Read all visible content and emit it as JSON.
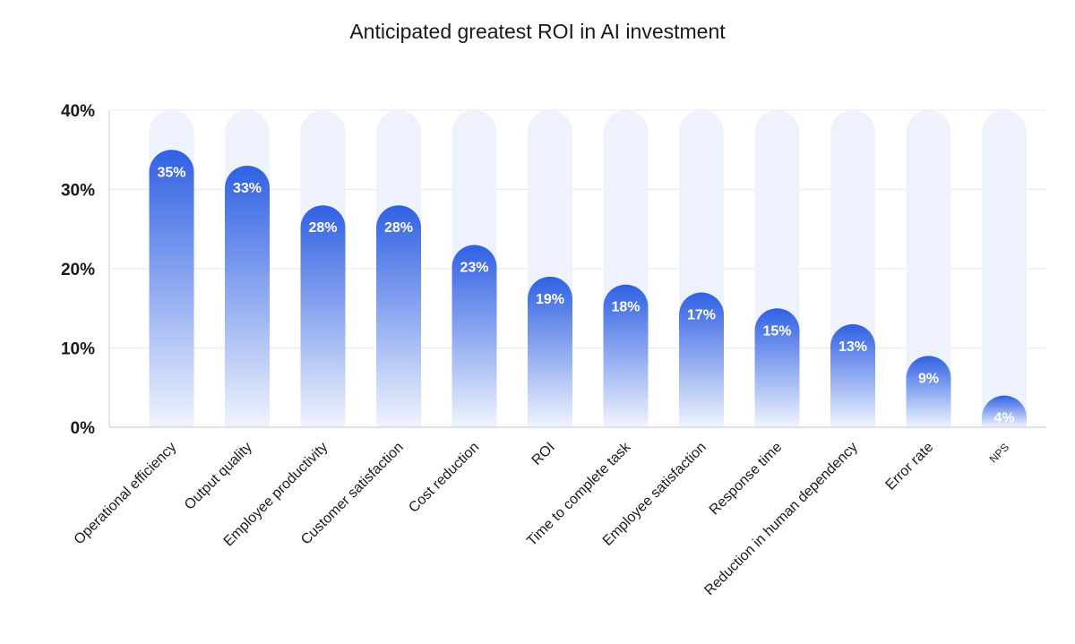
{
  "chart_data": {
    "type": "bar",
    "title": "Anticipated greatest ROI in AI investment",
    "xlabel": "",
    "ylabel": "",
    "categories": [
      "Operational efficiency",
      "Output quality",
      "Employee productivity",
      "Customer satisfaction",
      "Cost reduction",
      "ROI",
      "Time to complete task",
      "Employee satisfaction",
      "Response time",
      "Reduction in human dependency",
      "Error rate",
      "NPS"
    ],
    "values": [
      35,
      33,
      28,
      28,
      23,
      19,
      18,
      17,
      15,
      13,
      9,
      4
    ],
    "data_labels": [
      "35%",
      "33%",
      "28%",
      "28%",
      "23%",
      "19%",
      "18%",
      "17%",
      "15%",
      "13%",
      "9%",
      "4%"
    ],
    "ylim": [
      0,
      40
    ],
    "yticks": [
      0,
      10,
      20,
      30,
      40
    ],
    "ytick_labels": [
      "0%",
      "10%",
      "20%",
      "30%",
      "40%"
    ],
    "grid": true,
    "colors": {
      "bar_top": "#3061e3",
      "bar_bottom": "#f0f4fd",
      "track": "#edf2fd",
      "grid": "#e6eaf2",
      "axis": "#c9d0dc",
      "text": "#1a1a1a",
      "label": "#ffffff"
    }
  }
}
